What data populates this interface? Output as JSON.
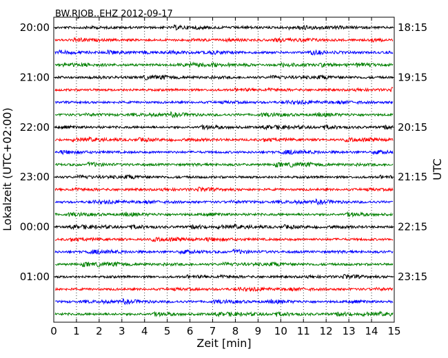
{
  "chart_data": {
    "type": "line",
    "subtype": "dayplot-seismogram",
    "title": "BW.RJOB..EHZ 2012-09-17",
    "xlabel": "Zeit  [min]",
    "ylabel_left": "Lokalzeit (UTC+02:00)",
    "ylabel_right": "UTC",
    "xlim": [
      0,
      15
    ],
    "x_ticks": [
      "0",
      "1",
      "2",
      "3",
      "4",
      "5",
      "6",
      "7",
      "8",
      "9",
      "10",
      "11",
      "12",
      "13",
      "14",
      "15"
    ],
    "x_grid": "dotted vertical at each minute",
    "n_traces": 24,
    "trace_interval_min": 15,
    "trace_colors": [
      "#000000",
      "#ff0000",
      "#0000ff",
      "#008000"
    ],
    "left_tick_labels": [
      {
        "trace": 0,
        "label": "20:00"
      },
      {
        "trace": 4,
        "label": "21:00"
      },
      {
        "trace": 8,
        "label": "22:00"
      },
      {
        "trace": 12,
        "label": "23:00"
      },
      {
        "trace": 16,
        "label": "00:00"
      },
      {
        "trace": 20,
        "label": "01:00"
      }
    ],
    "right_tick_labels": [
      {
        "trace": 0,
        "label": "18:15"
      },
      {
        "trace": 4,
        "label": "19:15"
      },
      {
        "trace": 8,
        "label": "20:15"
      },
      {
        "trace": 12,
        "label": "21:15"
      },
      {
        "trace": 16,
        "label": "22:15"
      },
      {
        "trace": 20,
        "label": "23:15"
      }
    ]
  }
}
